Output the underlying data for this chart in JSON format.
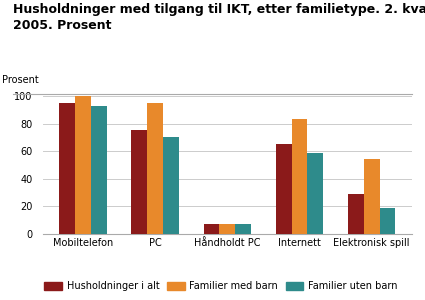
{
  "title": "Husholdninger med tilgang til IKT, etter familietype. 2. kvartal\n2005. Prosent",
  "ylabel": "Prosent",
  "categories": [
    "Mobiltelefon",
    "PC",
    "Håndholdt PC",
    "Internett",
    "Elektronisk spill"
  ],
  "series": {
    "Husholdninger i alt": [
      95,
      75,
      7,
      65,
      29
    ],
    "Familier med barn": [
      100,
      95,
      7,
      83,
      54
    ],
    "Familier uten barn": [
      93,
      70,
      7,
      59,
      19
    ]
  },
  "colors": {
    "Husholdninger i alt": "#8B1A1A",
    "Familier med barn": "#E8892B",
    "Familier uten barn": "#2E8B8B"
  },
  "ylim": [
    0,
    100
  ],
  "yticks": [
    0,
    20,
    40,
    60,
    80,
    100
  ],
  "bar_width": 0.22,
  "background_color": "#ffffff",
  "grid_color": "#cccccc",
  "title_fontsize": 9,
  "axis_fontsize": 7,
  "legend_fontsize": 7
}
